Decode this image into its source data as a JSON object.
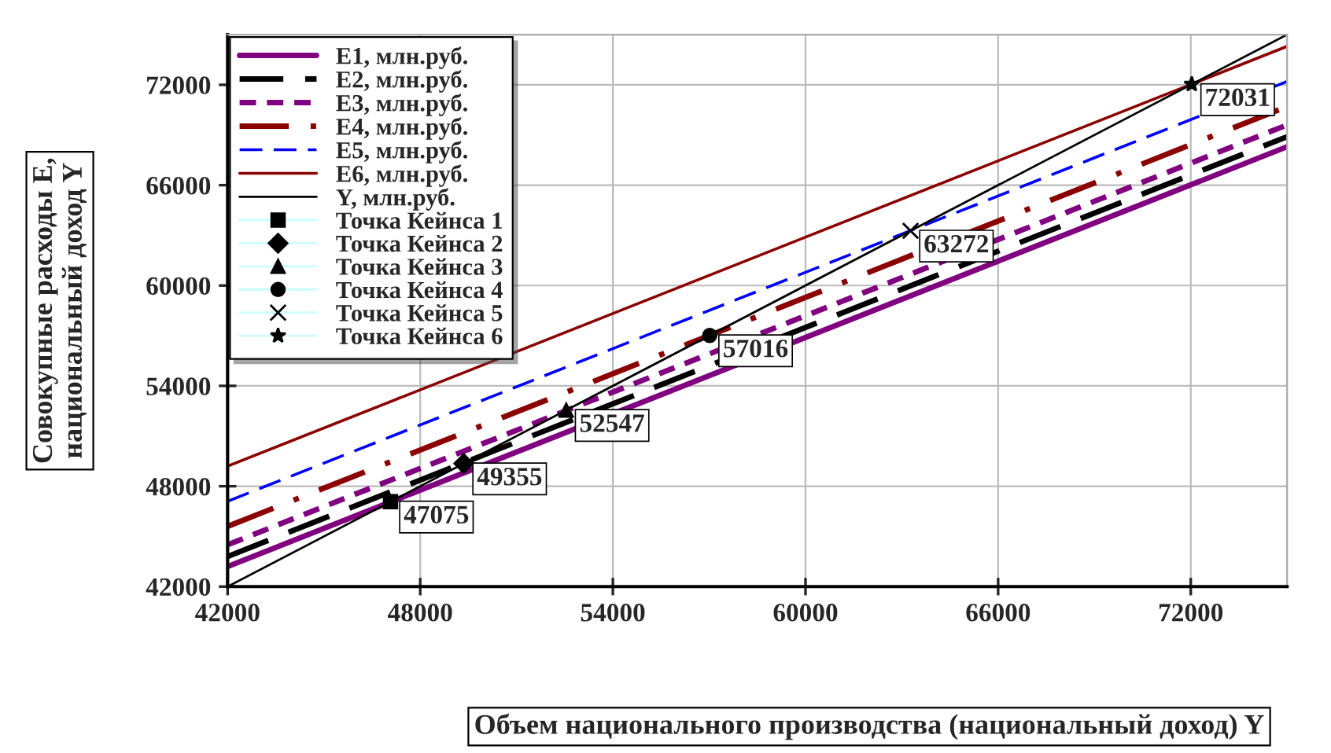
{
  "chart_data": {
    "type": "line",
    "xlabel": "Объем национального производства (национальный доход) Y",
    "ylabel": "Совокупные расходы E,\nнациональный доход Y",
    "xlim": [
      42000,
      75000
    ],
    "ylim": [
      42000,
      75000
    ],
    "xticks": [
      42000,
      48000,
      54000,
      60000,
      66000,
      72000
    ],
    "yticks": [
      42000,
      48000,
      54000,
      60000,
      66000,
      72000
    ],
    "grid": true,
    "legend": "top left",
    "series": [
      {
        "name": "E1, млн.руб.",
        "color": "#800080",
        "line_style": "solid",
        "x": [
          42000,
          75000
        ],
        "values": [
          43200,
          68300
        ]
      },
      {
        "name": "E2, млн.руб.",
        "color": "#000000",
        "line_style": "dashed",
        "x": [
          42000,
          75000
        ],
        "values": [
          43800,
          68900
        ]
      },
      {
        "name": "E3, млн.руб.",
        "color": "#800080",
        "line_style": "dotted",
        "x": [
          42000,
          75000
        ],
        "values": [
          44500,
          69600
        ]
      },
      {
        "name": "E4, млн.руб.",
        "color": "#8b0000",
        "line_style": "dashdot",
        "x": [
          42000,
          75000
        ],
        "values": [
          45600,
          70700
        ]
      },
      {
        "name": "E5, млн.руб.",
        "color": "#0000ff",
        "line_style": "dashed",
        "x": [
          42000,
          75000
        ],
        "values": [
          47100,
          72200
        ]
      },
      {
        "name": "E6, млн.руб.",
        "color": "#8b0000",
        "line_style": "solid",
        "x": [
          42000,
          75000
        ],
        "values": [
          49200,
          74300
        ]
      },
      {
        "name": "Y, млн.руб.",
        "color": "#000000",
        "line_style": "solid",
        "x": [
          42000,
          75000
        ],
        "values": [
          42000,
          75000
        ]
      },
      {
        "name": "Точка Кейнса 1",
        "type": "scatter",
        "marker": "square",
        "color": "#000000",
        "x": [
          47075
        ],
        "values": [
          47075
        ],
        "value_labels": [
          "47075"
        ]
      },
      {
        "name": "Точка Кейнса 2",
        "type": "scatter",
        "marker": "diamond",
        "color": "#000000",
        "x": [
          49355
        ],
        "values": [
          49355
        ],
        "value_labels": [
          "49355"
        ]
      },
      {
        "name": "Точка Кейнса 3",
        "type": "scatter",
        "marker": "triangle",
        "color": "#000000",
        "x": [
          52547
        ],
        "values": [
          52547
        ],
        "value_labels": [
          "52547"
        ]
      },
      {
        "name": "Точка Кейнса 4",
        "type": "scatter",
        "marker": "circle",
        "color": "#000000",
        "x": [
          57016
        ],
        "values": [
          57016
        ],
        "value_labels": [
          "57016"
        ]
      },
      {
        "name": "Точка Кейнса 5",
        "type": "scatter",
        "marker": "cross",
        "color": "#000000",
        "x": [
          63272
        ],
        "values": [
          63272
        ],
        "value_labels": [
          "63272"
        ]
      },
      {
        "name": "Точка Кейнса 6",
        "type": "scatter",
        "marker": "star",
        "color": "#000000",
        "x": [
          72031
        ],
        "values": [
          72031
        ],
        "value_labels": [
          "72031"
        ]
      }
    ]
  }
}
